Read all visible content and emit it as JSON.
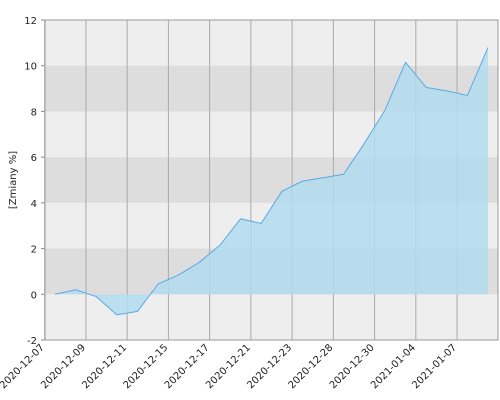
{
  "chart_data": {
    "type": "area",
    "y_label": "[Zmiany %]",
    "categories": [
      "2020-12-07",
      null,
      "2020-12-09",
      null,
      "2020-12-11",
      null,
      "2020-12-15",
      null,
      "2020-12-17",
      null,
      "2020-12-21",
      null,
      "2020-12-23",
      null,
      "2020-12-28",
      null,
      "2020-12-30",
      null,
      "2021-01-04",
      null,
      "2021-01-07",
      null
    ],
    "values": [
      0.0,
      0.2,
      -0.1,
      -0.9,
      -0.75,
      0.45,
      0.85,
      1.4,
      2.15,
      3.3,
      3.1,
      4.5,
      4.95,
      5.1,
      5.25,
      6.6,
      8.05,
      10.15,
      9.05,
      8.9,
      8.7,
      10.8
    ],
    "color": "#5aa9e6",
    "fill": "#b3dcf0",
    "ylim": [
      -2,
      12
    ],
    "yticks": [
      -2,
      0,
      2,
      4,
      6,
      8,
      10,
      12
    ],
    "grid": true
  }
}
